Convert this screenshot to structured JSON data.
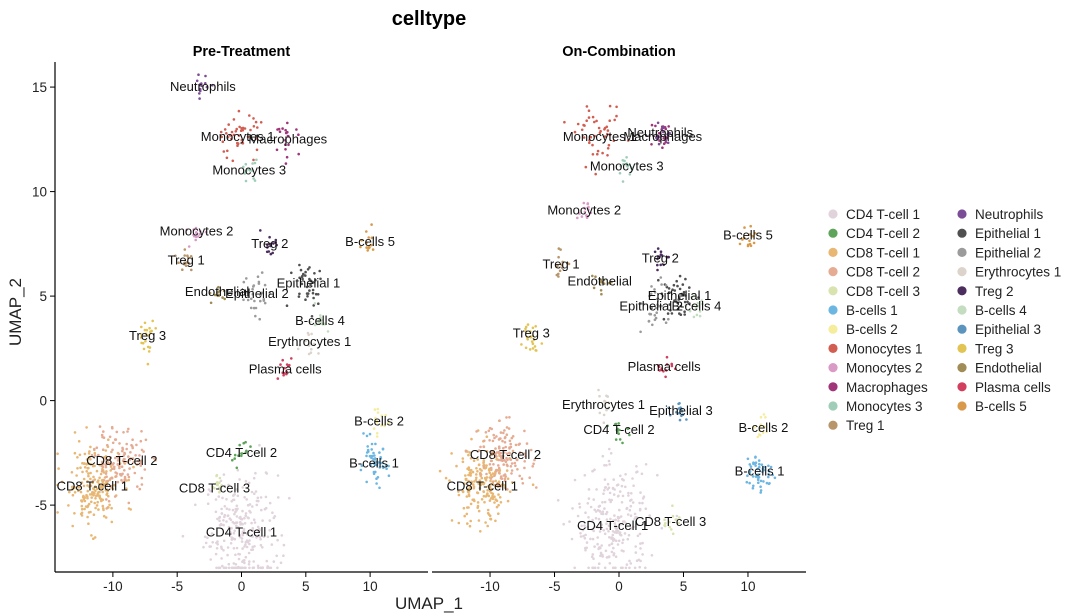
{
  "chart_data": {
    "type": "scatter",
    "title": "celltype",
    "xlabel": "UMAP_1",
    "ylabel": "UMAP_2",
    "xlim": [
      -14.5,
      14.5
    ],
    "ylim": [
      -8.2,
      16.2
    ],
    "xticks": [
      -10,
      -5,
      0,
      5,
      10
    ],
    "yticks": [
      -5,
      0,
      5,
      10,
      15
    ],
    "legend_position": "right",
    "legend": [
      {
        "label": "CD4 T-cell 1",
        "color": "#e0d3dc"
      },
      {
        "label": "CD4 T-cell 2",
        "color": "#5ea45a"
      },
      {
        "label": "CD8 T-cell 1",
        "color": "#e8b773"
      },
      {
        "label": "CD8 T-cell 2",
        "color": "#e5ab93"
      },
      {
        "label": "CD8 T-cell 3",
        "color": "#d8e3b0"
      },
      {
        "label": "B-cells 1",
        "color": "#6cb6e2"
      },
      {
        "label": "B-cells 2",
        "color": "#f5ec9c"
      },
      {
        "label": "Monocytes 1",
        "color": "#d25e52"
      },
      {
        "label": "Monocytes 2",
        "color": "#d99ac6"
      },
      {
        "label": "Macrophages",
        "color": "#a0357a"
      },
      {
        "label": "Monocytes 3",
        "color": "#9fcdb8"
      },
      {
        "label": "Treg 1",
        "color": "#b8956b"
      },
      {
        "label": "Neutrophils",
        "color": "#7b4d96"
      },
      {
        "label": "Epithelial 1",
        "color": "#505050"
      },
      {
        "label": "Epithelial 2",
        "color": "#9b9b9b"
      },
      {
        "label": "Erythrocytes 1",
        "color": "#dcd3cb"
      },
      {
        "label": "Treg 2",
        "color": "#4b2e5e"
      },
      {
        "label": "B-cells 4",
        "color": "#c4dcc0"
      },
      {
        "label": "Epithelial 3",
        "color": "#5b95be"
      },
      {
        "label": "Treg 3",
        "color": "#e2c454"
      },
      {
        "label": "Endothelial",
        "color": "#a08c55"
      },
      {
        "label": "Plasma cells",
        "color": "#d23e5e"
      },
      {
        "label": "B-cells 5",
        "color": "#d89a4a"
      }
    ],
    "panels": [
      {
        "title": "Pre-Treatment",
        "clusters": [
          {
            "label": "CD4 T-cell 1",
            "x": 0,
            "y": -6.3
          },
          {
            "label": "CD4 T-cell 2",
            "x": 0,
            "y": -2.5
          },
          {
            "label": "CD8 T-cell 1",
            "x": -11.6,
            "y": -4.1
          },
          {
            "label": "CD8 T-cell 2",
            "x": -9.3,
            "y": -2.9
          },
          {
            "label": "CD8 T-cell 3",
            "x": -2.1,
            "y": -4.2
          },
          {
            "label": "B-cells 1",
            "x": 10.3,
            "y": -3.0
          },
          {
            "label": "B-cells 2",
            "x": 10.7,
            "y": -1.0
          },
          {
            "label": "Monocytes 1",
            "x": -0.3,
            "y": 12.6
          },
          {
            "label": "Monocytes 2",
            "x": -3.5,
            "y": 8.1
          },
          {
            "label": "Macrophages",
            "x": 3.6,
            "y": 12.5
          },
          {
            "label": "Monocytes 3",
            "x": 0.6,
            "y": 11.0
          },
          {
            "label": "Treg 1",
            "x": -4.3,
            "y": 6.7
          },
          {
            "label": "Neutrophils",
            "x": -3.0,
            "y": 15.0
          },
          {
            "label": "Epithelial 1",
            "x": 5.2,
            "y": 5.6
          },
          {
            "label": "Epithelial 2",
            "x": 1.2,
            "y": 5.1
          },
          {
            "label": "Erythrocytes 1",
            "x": 5.3,
            "y": 2.8
          },
          {
            "label": "Treg 2",
            "x": 2.2,
            "y": 7.5
          },
          {
            "label": "B-cells 4",
            "x": 6.1,
            "y": 3.8
          },
          {
            "label": "Treg 3",
            "x": -7.3,
            "y": 3.1
          },
          {
            "label": "Endothelial",
            "x": -1.9,
            "y": 5.2
          },
          {
            "label": "Plasma cells",
            "x": 3.4,
            "y": 1.5
          },
          {
            "label": "B-cells 5",
            "x": 10.0,
            "y": 7.6
          }
        ]
      },
      {
        "title": "On-Combination",
        "clusters": [
          {
            "label": "CD4 T-cell 1",
            "x": -0.5,
            "y": -6.0
          },
          {
            "label": "CD4 T-cell 2",
            "x": 0.0,
            "y": -1.4
          },
          {
            "label": "CD8 T-cell 1",
            "x": -10.6,
            "y": -4.1
          },
          {
            "label": "CD8 T-cell 2",
            "x": -8.8,
            "y": -2.6
          },
          {
            "label": "CD8 T-cell 3",
            "x": 4.0,
            "y": -5.8
          },
          {
            "label": "B-cells 1",
            "x": 10.9,
            "y": -3.4
          },
          {
            "label": "B-cells 2",
            "x": 11.2,
            "y": -1.3
          },
          {
            "label": "Monocytes 1",
            "x": -1.5,
            "y": 12.6
          },
          {
            "label": "Monocytes 2",
            "x": -2.7,
            "y": 9.1
          },
          {
            "label": "Macrophages",
            "x": 3.4,
            "y": 12.6
          },
          {
            "label": "Monocytes 3",
            "x": 0.6,
            "y": 11.2
          },
          {
            "label": "Treg 1",
            "x": -4.5,
            "y": 6.5
          },
          {
            "label": "Neutrophils",
            "x": 3.2,
            "y": 12.8
          },
          {
            "label": "Epithelial 1",
            "x": 4.7,
            "y": 5.0
          },
          {
            "label": "Epithelial 2",
            "x": 2.5,
            "y": 4.5
          },
          {
            "label": "Erythrocytes 1",
            "x": -1.2,
            "y": -0.2
          },
          {
            "label": "Treg 2",
            "x": 3.2,
            "y": 6.8
          },
          {
            "label": "B-cells 4",
            "x": 6.0,
            "y": 4.5
          },
          {
            "label": "Epithelial 3",
            "x": 4.8,
            "y": -0.5
          },
          {
            "label": "Treg 3",
            "x": -6.8,
            "y": 3.2
          },
          {
            "label": "Endothelial",
            "x": -1.5,
            "y": 5.7
          },
          {
            "label": "Plasma cells",
            "x": 3.5,
            "y": 1.6
          },
          {
            "label": "B-cells 5",
            "x": 10.0,
            "y": 7.9
          }
        ]
      }
    ]
  }
}
